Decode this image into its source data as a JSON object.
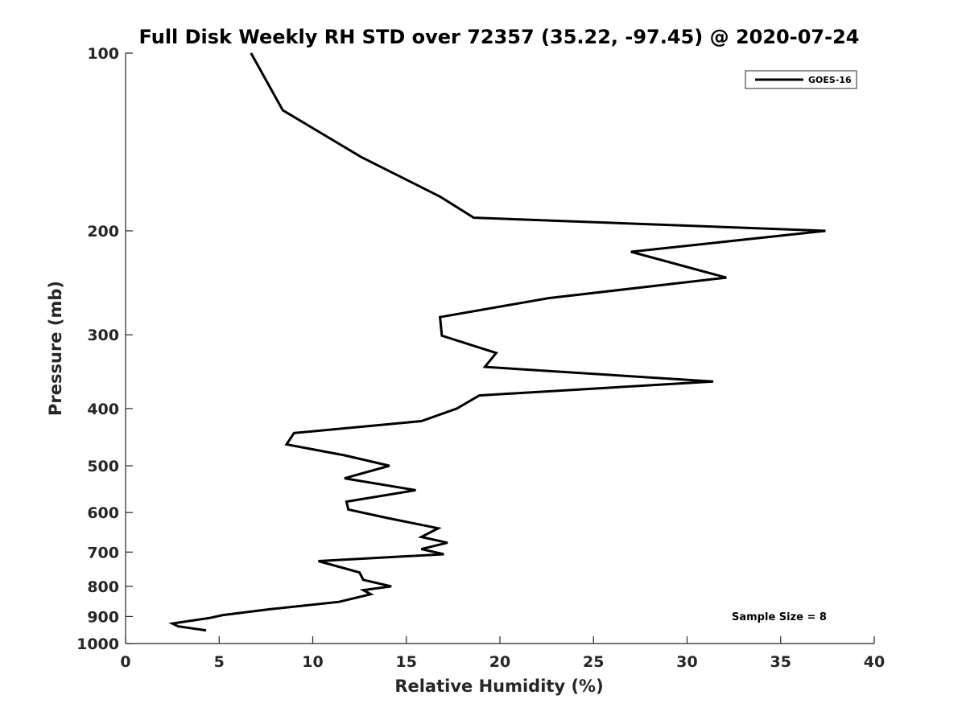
{
  "chart_data": {
    "type": "line",
    "title": "Full Disk Weekly RH STD over 72357 (35.22, -97.45) @ 2020-07-24",
    "xlabel": "Relative Humidity (%)",
    "ylabel": "Pressure (mb)",
    "xlim": [
      0,
      40
    ],
    "ylim": [
      100,
      1000
    ],
    "yscale": "log",
    "y_reversed": true,
    "grid": false,
    "x_ticks": [
      0,
      5,
      10,
      15,
      20,
      25,
      30,
      35,
      40
    ],
    "x_tick_labels": [
      "0",
      "5",
      "10",
      "15",
      "20",
      "25",
      "30",
      "35",
      "40"
    ],
    "y_ticks": [
      100,
      200,
      300,
      400,
      500,
      600,
      700,
      800,
      900,
      1000
    ],
    "y_tick_labels": [
      "100",
      "200",
      "300",
      "400",
      "500",
      "600",
      "700",
      "800",
      "900",
      "1000"
    ],
    "legend": {
      "position": "top-right",
      "entries": [
        "GOES-16"
      ]
    },
    "annotation": "Sample Size = 8",
    "series": [
      {
        "name": "GOES-16",
        "color": "#000000",
        "points": [
          [
            6.7,
            100
          ],
          [
            8.4,
            125
          ],
          [
            12.6,
            150
          ],
          [
            16.8,
            175
          ],
          [
            18.6,
            190
          ],
          [
            37.4,
            200
          ],
          [
            27.0,
            217
          ],
          [
            32.1,
            240
          ],
          [
            22.6,
            260
          ],
          [
            16.8,
            280
          ],
          [
            16.9,
            301
          ],
          [
            19.8,
            322
          ],
          [
            19.2,
            340
          ],
          [
            31.4,
            360
          ],
          [
            18.9,
            380
          ],
          [
            17.7,
            400
          ],
          [
            15.8,
            420
          ],
          [
            9.0,
            440
          ],
          [
            8.6,
            460
          ],
          [
            11.7,
            480
          ],
          [
            14.1,
            500
          ],
          [
            11.7,
            525
          ],
          [
            15.5,
            550
          ],
          [
            11.8,
            575
          ],
          [
            11.9,
            593
          ],
          [
            14.0,
            613
          ],
          [
            16.7,
            638
          ],
          [
            15.8,
            660
          ],
          [
            17.2,
            675
          ],
          [
            15.8,
            692
          ],
          [
            17.0,
            706
          ],
          [
            10.3,
            725
          ],
          [
            12.5,
            758
          ],
          [
            12.7,
            780
          ],
          [
            14.2,
            800
          ],
          [
            12.7,
            812
          ],
          [
            13.1,
            825
          ],
          [
            11.4,
            850
          ],
          [
            7.7,
            875
          ],
          [
            5.2,
            895
          ],
          [
            4.5,
            905
          ],
          [
            2.5,
            925
          ],
          [
            2.8,
            935
          ],
          [
            4.3,
            950
          ]
        ]
      }
    ]
  }
}
